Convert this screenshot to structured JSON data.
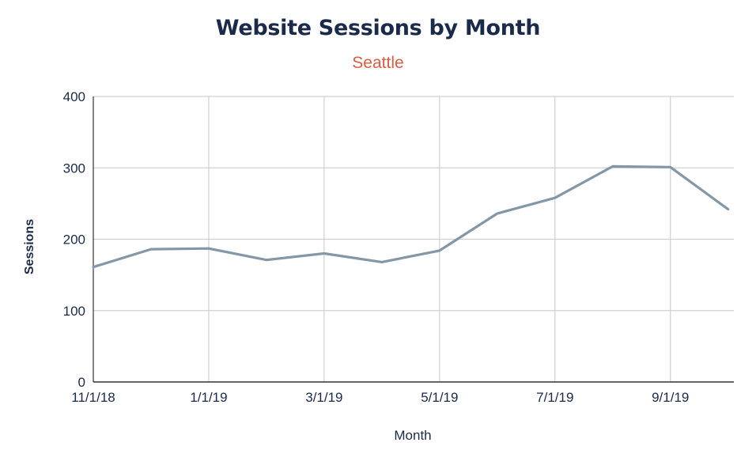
{
  "colors": {
    "title": "#1b2a4a",
    "subtitle": "#d95c45",
    "line": "#8497a6",
    "grid": "#d0d0d0",
    "axis": "#333333",
    "text": "#1b2a4a"
  },
  "chart_data": {
    "type": "line",
    "title": "Website Sessions by Month",
    "subtitle": "Seattle",
    "xlabel": "Month",
    "ylabel": "Sessions",
    "ylim": [
      0,
      400
    ],
    "yticks": [
      0,
      100,
      200,
      300,
      400
    ],
    "xticks": [
      "11/1/18",
      "1/1/19",
      "3/1/19",
      "5/1/19",
      "7/1/19",
      "9/1/19"
    ],
    "grid": true,
    "legend": "none",
    "x": [
      "11/1/18",
      "12/1/18",
      "1/1/19",
      "2/1/19",
      "3/1/19",
      "4/1/19",
      "5/1/19",
      "6/1/19",
      "7/1/19",
      "8/1/19",
      "9/1/19",
      "10/1/19"
    ],
    "series": [
      {
        "values": [
          161,
          186,
          187,
          171,
          180,
          168,
          184,
          236,
          258,
          302,
          301,
          242
        ]
      }
    ]
  }
}
